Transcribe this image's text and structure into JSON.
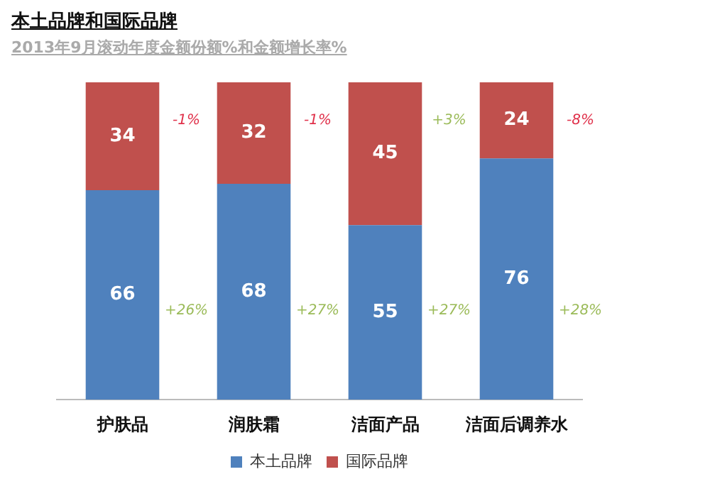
{
  "chart_data": {
    "type": "bar",
    "stacked": true,
    "data_labels": true,
    "legend": "bottom",
    "title": "本土品牌和国际品牌",
    "subtitle": "2013年9月滚动年度金额份额%和金额增长率%",
    "categories": [
      "护肤品",
      "润肤霜",
      "洁面产品",
      "洁面后调养水"
    ],
    "series": [
      {
        "name": "本土品牌",
        "color": "#4f81bd",
        "values": [
          66,
          68,
          55,
          76
        ]
      },
      {
        "name": "国际品牌",
        "color": "#c0504d",
        "values": [
          34,
          32,
          45,
          24
        ]
      }
    ],
    "annotations": [
      "+26%",
      "-1%",
      "+27%",
      "-1%",
      "+27%",
      "+3%",
      "+28%",
      "-8%"
    ]
  }
}
